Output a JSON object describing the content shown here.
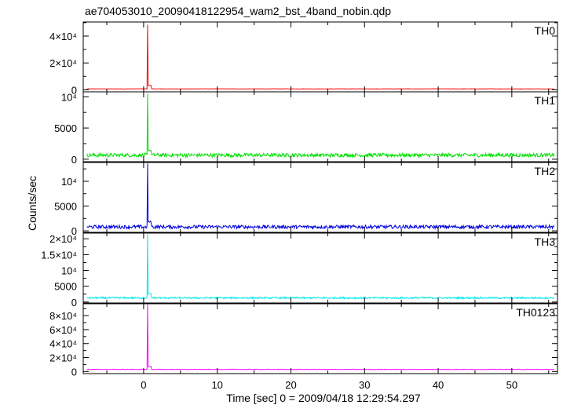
{
  "title": "ae704053010_20090418122954_wam2_bst_4band_nobin.qdp",
  "xlabel": "Time [sec] 0 = 2009/04/18 12:29:54.297",
  "ylabel": "Counts/sec",
  "chart_data": {
    "type": "line",
    "title": "ae704053010_20090418122954_wam2_bst_4band_nobin.qdp",
    "xlabel": "Time [sec] 0 = 2009/04/18 12:29:54.297",
    "ylabel": "Counts/sec",
    "xlim": [
      -8.2,
      56.2
    ],
    "x_ticks": [
      {
        "v": 0,
        "label": "0"
      },
      {
        "v": 10,
        "label": "10"
      },
      {
        "v": 20,
        "label": "20"
      },
      {
        "v": 30,
        "label": "30"
      },
      {
        "v": 40,
        "label": "40"
      },
      {
        "v": 50,
        "label": "50"
      }
    ],
    "data_start": -7.7,
    "data_end": 55.8,
    "grid": false,
    "panels": [
      {
        "name": "TH0",
        "color": "#ff0000",
        "ylim": [
          -1500,
          50500
        ],
        "y_ticks": [
          {
            "v": 0,
            "label": "0"
          },
          {
            "v": 20000,
            "label": "2×10⁴"
          },
          {
            "v": 40000,
            "label": "4×10⁴"
          }
        ],
        "baseline": 700,
        "noise": 150,
        "spike_time": 0.5,
        "spike_value": 48500,
        "after_value": 3200
      },
      {
        "name": "TH1",
        "color": "#00e000",
        "ylim": [
          -400,
          10800
        ],
        "y_ticks": [
          {
            "v": 0,
            "label": "0"
          },
          {
            "v": 5000,
            "label": "5000"
          },
          {
            "v": 10000,
            "label": "10⁴"
          }
        ],
        "baseline": 650,
        "noise": 300,
        "spike_time": 0.5,
        "spike_value": 10500,
        "after_value": 1500
      },
      {
        "name": "TH2",
        "color": "#0000e0",
        "ylim": [
          -300,
          13800
        ],
        "y_ticks": [
          {
            "v": 0,
            "label": "0"
          },
          {
            "v": 5000,
            "label": "5000"
          },
          {
            "v": 10000,
            "label": "10⁴"
          }
        ],
        "baseline": 800,
        "noise": 350,
        "spike_time": 0.5,
        "spike_value": 13600,
        "after_value": 1800
      },
      {
        "name": "TH3",
        "color": "#00e8e8",
        "ylim": [
          -300,
          21800
        ],
        "y_ticks": [
          {
            "v": 0,
            "label": "0"
          },
          {
            "v": 5000,
            "label": "5000"
          },
          {
            "v": 10000,
            "label": "10⁴"
          },
          {
            "v": 15000,
            "label": "1.5×10⁴"
          },
          {
            "v": 20000,
            "label": "2×10⁴"
          }
        ],
        "baseline": 1300,
        "noise": 280,
        "spike_time": 0.5,
        "spike_value": 21500,
        "after_value": 2600
      },
      {
        "name": "TH0123",
        "color": "#ff00ff",
        "ylim": [
          -3000,
          97000
        ],
        "y_ticks": [
          {
            "v": 0,
            "label": "0"
          },
          {
            "v": 20000,
            "label": "2×10⁴"
          },
          {
            "v": 40000,
            "label": "4×10⁴"
          },
          {
            "v": 60000,
            "label": "6×10⁴"
          },
          {
            "v": 80000,
            "label": "8×10⁴"
          }
        ],
        "baseline": 3000,
        "noise": 400,
        "spike_time": 0.5,
        "spike_value": 96000,
        "after_value": 7000
      }
    ]
  }
}
